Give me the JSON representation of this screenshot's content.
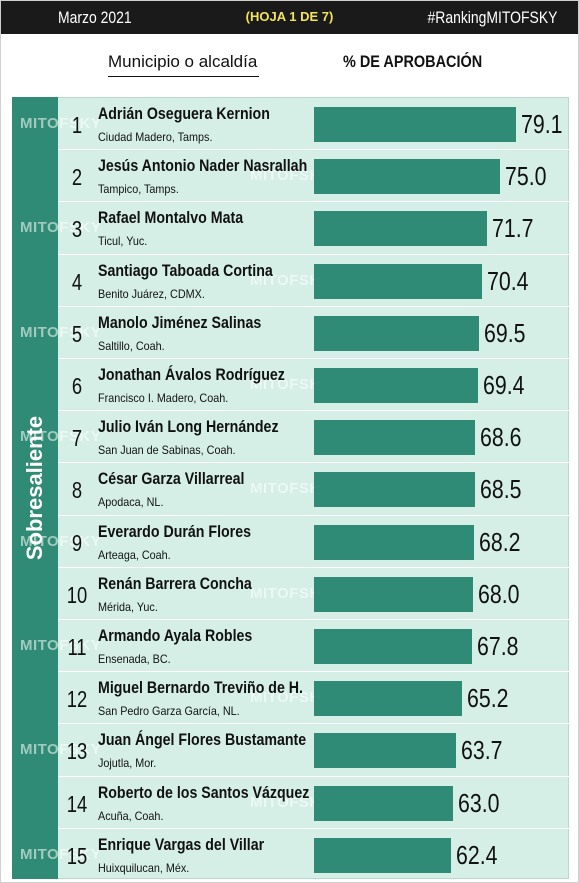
{
  "header": {
    "date": "Marzo 2021",
    "sheet": "(HOJA 1 DE 7)",
    "hashtag": "#RankingMITOFSKY"
  },
  "columns": {
    "municipality": "Municipio o alcaldía",
    "approval": "% DE APROBACIÓN"
  },
  "category_label": "Sobresaliente",
  "watermark": "MITOFSKY",
  "colors": {
    "bar": "#2f8b75",
    "panel": "#d5efe6",
    "header_bg": "#1a1a1a",
    "sheet_text": "#f2e35a"
  },
  "chart_data": {
    "type": "bar",
    "orientation": "horizontal",
    "value_scale_max": 100,
    "rows": [
      {
        "rank": "1",
        "name": "Adrián Oseguera Kernion",
        "place": "Ciudad Madero, Tamps.",
        "value": 79.1,
        "label": "79.1"
      },
      {
        "rank": "2",
        "name": "Jesús Antonio Nader Nasrallah",
        "place": "Tampico, Tamps.",
        "value": 75.0,
        "label": "75.0"
      },
      {
        "rank": "3",
        "name": "Rafael Montalvo Mata",
        "place": "Ticul, Yuc.",
        "value": 71.7,
        "label": "71.7"
      },
      {
        "rank": "4",
        "name": "Santiago Taboada Cortina",
        "place": "Benito Juárez, CDMX.",
        "value": 70.4,
        "label": "70.4"
      },
      {
        "rank": "5",
        "name": "Manolo Jiménez Salinas",
        "place": "Saltillo, Coah.",
        "value": 69.5,
        "label": "69.5"
      },
      {
        "rank": "6",
        "name": "Jonathan Ávalos Rodríguez",
        "place": "Francisco I. Madero, Coah.",
        "value": 69.4,
        "label": "69.4"
      },
      {
        "rank": "7",
        "name": "Julio Iván Long Hernández",
        "place": "San Juan de Sabinas, Coah.",
        "value": 68.6,
        "label": "68.6"
      },
      {
        "rank": "8",
        "name": "César Garza Villarreal",
        "place": "Apodaca, NL.",
        "value": 68.5,
        "label": "68.5"
      },
      {
        "rank": "9",
        "name": "Everardo Durán Flores",
        "place": "Arteaga, Coah.",
        "value": 68.2,
        "label": "68.2"
      },
      {
        "rank": "10",
        "name": "Renán Barrera Concha",
        "place": "Mérida, Yuc.",
        "value": 68.0,
        "label": "68.0"
      },
      {
        "rank": "11",
        "name": "Armando Ayala Robles",
        "place": "Ensenada, BC.",
        "value": 67.8,
        "label": "67.8"
      },
      {
        "rank": "12",
        "name": "Miguel Bernardo Treviño de H.",
        "place": "San Pedro Garza García, NL.",
        "value": 65.2,
        "label": "65.2"
      },
      {
        "rank": "13",
        "name": "Juan Ángel Flores Bustamante",
        "place": "Jojutla, Mor.",
        "value": 63.7,
        "label": "63.7"
      },
      {
        "rank": "14",
        "name": "Roberto de los Santos Vázquez",
        "place": "Acuña, Coah.",
        "value": 63.0,
        "label": "63.0"
      },
      {
        "rank": "15",
        "name": "Enrique Vargas del Villar",
        "place": "Huixquilucan, Méx.",
        "value": 62.4,
        "label": "62.4"
      }
    ]
  }
}
